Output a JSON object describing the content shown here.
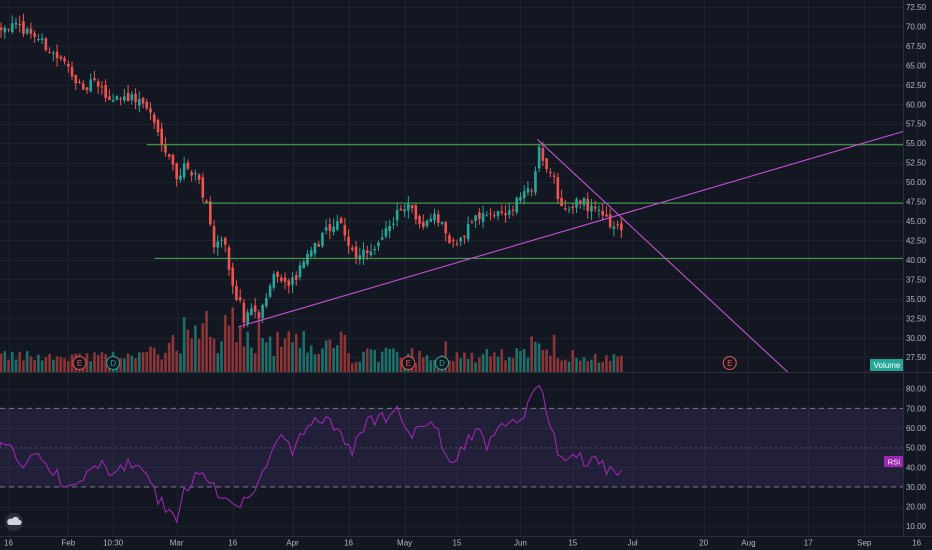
{
  "chart_data": {
    "type": "candlestick",
    "panes": [
      "price",
      "rsi"
    ],
    "price_axis": {
      "ticks": [
        "72.50",
        "70.00",
        "67.50",
        "65.00",
        "62.50",
        "60.00",
        "57.50",
        "55.00",
        "52.50",
        "50.00",
        "47.50",
        "45.00",
        "42.50",
        "40.00",
        "37.50",
        "35.00",
        "32.50",
        "30.00",
        "27.50"
      ],
      "range": [
        25.6,
        73.4
      ]
    },
    "rsi_axis": {
      "ticks": [
        "80.00",
        "70.00",
        "60.00",
        "50.00",
        "40.00",
        "30.00",
        "20.00",
        "10.00"
      ],
      "range": [
        5,
        88
      ],
      "upper_band": 70,
      "lower_band": 30
    },
    "time_axis": {
      "ticks": [
        {
          "label": "16",
          "day": 0
        },
        {
          "label": "Feb",
          "day": 16
        },
        {
          "label": "10:30",
          "day": 28
        },
        {
          "label": "Mar",
          "day": 45
        },
        {
          "label": "16",
          "day": 60
        },
        {
          "label": "Apr",
          "day": 76
        },
        {
          "label": "16",
          "day": 91
        },
        {
          "label": "May",
          "day": 106
        },
        {
          "label": "15",
          "day": 120
        },
        {
          "label": "Jun",
          "day": 137
        },
        {
          "label": "15",
          "day": 151
        },
        {
          "label": "Jul",
          "day": 167
        },
        {
          "label": "20",
          "day": 186
        },
        {
          "label": "Aug",
          "day": 198
        },
        {
          "label": "17",
          "day": 214
        },
        {
          "label": "Sep",
          "day": 229
        },
        {
          "label": "16",
          "day": 243
        }
      ]
    },
    "price_anchor_points": [
      [
        -4,
        70.2
      ],
      [
        2,
        69.9
      ],
      [
        6,
        69.3
      ],
      [
        10,
        67.4
      ],
      [
        14,
        65.6
      ],
      [
        17,
        64.2
      ],
      [
        20,
        61.3
      ],
      [
        22,
        62.9
      ],
      [
        24,
        62.3
      ],
      [
        27,
        60.6
      ],
      [
        30,
        61.1
      ],
      [
        33,
        60.8
      ],
      [
        36,
        60.2
      ],
      [
        38,
        58.8
      ],
      [
        40,
        56.3
      ],
      [
        43,
        53.5
      ],
      [
        45,
        50.5
      ],
      [
        47,
        51.8
      ],
      [
        50,
        51.2
      ],
      [
        53,
        47.3
      ],
      [
        54,
        44.3
      ],
      [
        55,
        42.2
      ],
      [
        56,
        42.6
      ],
      [
        58,
        42.0
      ],
      [
        59,
        38.2
      ],
      [
        61,
        35.3
      ],
      [
        62,
        34.6
      ],
      [
        63,
        32.5
      ],
      [
        65,
        33.7
      ],
      [
        67,
        32.4
      ],
      [
        69,
        35.1
      ],
      [
        71,
        37.6
      ],
      [
        73,
        37.9
      ],
      [
        75,
        36.7
      ],
      [
        77,
        38.0
      ],
      [
        79,
        40.0
      ],
      [
        81,
        41.2
      ],
      [
        83,
        42.3
      ],
      [
        85,
        43.6
      ],
      [
        87,
        44.7
      ],
      [
        89,
        44.9
      ],
      [
        91,
        41.8
      ],
      [
        93,
        40.0
      ],
      [
        95,
        41.3
      ],
      [
        97,
        41.0
      ],
      [
        99,
        42.5
      ],
      [
        101,
        43.9
      ],
      [
        103,
        45.2
      ],
      [
        105,
        46.6
      ],
      [
        107,
        47.0
      ],
      [
        109,
        45.1
      ],
      [
        111,
        44.3
      ],
      [
        113,
        45.8
      ],
      [
        115,
        45.4
      ],
      [
        117,
        43.6
      ],
      [
        118,
        42.1
      ],
      [
        120,
        41.8
      ],
      [
        122,
        43.3
      ],
      [
        124,
        45.2
      ],
      [
        126,
        45.7
      ],
      [
        128,
        45.3
      ],
      [
        130,
        46.2
      ],
      [
        132,
        45.6
      ],
      [
        134,
        46.6
      ],
      [
        136,
        47.4
      ],
      [
        138,
        48.6
      ],
      [
        140,
        49.0
      ],
      [
        142,
        54.9
      ],
      [
        144,
        51.7
      ],
      [
        146,
        51.0
      ],
      [
        147,
        48.0
      ],
      [
        149,
        46.4
      ],
      [
        151,
        47.1
      ],
      [
        153,
        47.8
      ],
      [
        155,
        46.9
      ],
      [
        156,
        46.4
      ],
      [
        158,
        46.6
      ],
      [
        160,
        45.0
      ],
      [
        162,
        44.4
      ],
      [
        163,
        44.7
      ],
      [
        164,
        44.2
      ]
    ],
    "price_last_day": 164,
    "rsi_anchor_points": [
      [
        -4,
        49
      ],
      [
        0,
        50
      ],
      [
        4,
        39
      ],
      [
        7,
        47
      ],
      [
        10,
        40
      ],
      [
        13,
        37
      ],
      [
        15,
        30
      ],
      [
        17,
        29
      ],
      [
        19,
        32
      ],
      [
        21,
        37
      ],
      [
        24,
        42
      ],
      [
        27,
        37
      ],
      [
        30,
        42
      ],
      [
        33,
        40
      ],
      [
        36,
        38
      ],
      [
        38,
        30
      ],
      [
        40,
        24
      ],
      [
        43,
        18
      ],
      [
        45,
        13
      ],
      [
        47,
        27
      ],
      [
        50,
        37
      ],
      [
        53,
        34
      ],
      [
        56,
        26
      ],
      [
        59,
        21
      ],
      [
        62,
        22
      ],
      [
        65,
        27
      ],
      [
        68,
        35
      ],
      [
        71,
        52
      ],
      [
        74,
        55
      ],
      [
        76,
        48
      ],
      [
        78,
        55
      ],
      [
        80,
        59
      ],
      [
        82,
        62
      ],
      [
        84,
        65
      ],
      [
        86,
        63
      ],
      [
        88,
        60
      ],
      [
        90,
        52
      ],
      [
        92,
        48
      ],
      [
        94,
        55
      ],
      [
        96,
        62
      ],
      [
        98,
        64
      ],
      [
        100,
        65
      ],
      [
        102,
        66
      ],
      [
        104,
        72
      ],
      [
        106,
        64
      ],
      [
        108,
        56
      ],
      [
        110,
        58
      ],
      [
        112,
        58
      ],
      [
        114,
        62
      ],
      [
        116,
        53
      ],
      [
        118,
        43
      ],
      [
        120,
        42
      ],
      [
        122,
        52
      ],
      [
        124,
        55
      ],
      [
        126,
        58
      ],
      [
        128,
        52
      ],
      [
        130,
        57
      ],
      [
        132,
        60
      ],
      [
        134,
        62
      ],
      [
        136,
        62
      ],
      [
        138,
        66
      ],
      [
        140,
        77
      ],
      [
        142,
        83
      ],
      [
        144,
        68
      ],
      [
        146,
        56
      ],
      [
        147,
        46
      ],
      [
        149,
        42
      ],
      [
        151,
        46
      ],
      [
        153,
        44
      ],
      [
        155,
        43
      ],
      [
        156,
        47
      ],
      [
        158,
        44
      ],
      [
        160,
        39
      ],
      [
        162,
        36
      ],
      [
        163,
        38
      ],
      [
        164,
        42
      ]
    ],
    "horizontal_lines": [
      {
        "price": 54.8,
        "from_day": 37,
        "color": "#4caf50"
      },
      {
        "price": 47.3,
        "from_day": 52,
        "color": "#4caf50"
      },
      {
        "price": 40.2,
        "from_day": 39,
        "color": "#4caf50"
      }
    ],
    "trend_lines": [
      {
        "from": [
          61.5,
          31.4
        ],
        "to": [
          242.5,
          56.5
        ],
        "color": "#c451d4"
      },
      {
        "from": [
          141.5,
          55.5
        ],
        "to": [
          208.5,
          25.6
        ],
        "color": "#c451d4"
      }
    ],
    "earnings_markers": [
      {
        "label": "E",
        "day": 19,
        "type": "earnings"
      },
      {
        "label": "D",
        "day": 28,
        "type": "dividend"
      },
      {
        "label": "E",
        "day": 107,
        "type": "earnings"
      },
      {
        "label": "D",
        "day": 116,
        "type": "dividend"
      },
      {
        "label": "E",
        "day": 193,
        "type": "earnings"
      }
    ],
    "colors": {
      "background": "#131722",
      "up": "#26a69a",
      "down": "#ef5350",
      "volume_up": "#1e8077",
      "volume_down": "#a23b3b",
      "rsi": "#9c27b0",
      "rsi_band": "#7e57c2",
      "grid": "#1e222d",
      "axis_text": "#b2b5be"
    },
    "volume_label": "Volume",
    "rsi_label": "RSI"
  }
}
